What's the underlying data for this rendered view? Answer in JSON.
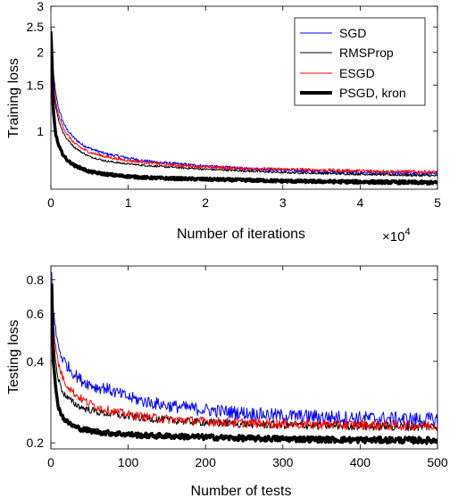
{
  "chart_data": [
    {
      "type": "line",
      "title": "",
      "xlabel": "Number of iterations",
      "ylabel": "Training loss",
      "x_exponent_label": "×10",
      "x_exponent_power": "4",
      "xlim": [
        0,
        5
      ],
      "ylim": [
        0.6,
        3.0
      ],
      "yscale": "log",
      "xticks": [
        0,
        1,
        2,
        3,
        4,
        5
      ],
      "xtick_labels": [
        "0",
        "1",
        "2",
        "3",
        "4",
        "5"
      ],
      "yticks": [
        1,
        1.5,
        2,
        2.5,
        3
      ],
      "ytick_labels": [
        "1",
        "1.5",
        "2",
        "2.5",
        "3"
      ],
      "grid": false,
      "legend_placement": "top-right",
      "series": [
        {
          "name": "SGD",
          "color": "#0000ff",
          "x": [
            0,
            0.03,
            0.06,
            0.1,
            0.15,
            0.2,
            0.3,
            0.4,
            0.5,
            0.7,
            0.9,
            1.2,
            1.5,
            2.0,
            2.5,
            3.0,
            3.5,
            4.0,
            4.5,
            5.0
          ],
          "values": [
            2.3,
            1.7,
            1.4,
            1.22,
            1.1,
            1.02,
            0.94,
            0.89,
            0.86,
            0.82,
            0.8,
            0.77,
            0.755,
            0.735,
            0.72,
            0.71,
            0.7,
            0.695,
            0.69,
            0.685
          ]
        },
        {
          "name": "RMSProp",
          "color": "#000000",
          "x": [
            0,
            0.03,
            0.06,
            0.1,
            0.15,
            0.2,
            0.3,
            0.4,
            0.5,
            0.7,
            0.9,
            1.2,
            1.5,
            2.0,
            2.5,
            3.0,
            3.5,
            4.0,
            4.5,
            5.0
          ],
          "values": [
            2.2,
            1.5,
            1.25,
            1.1,
            1.0,
            0.94,
            0.87,
            0.83,
            0.8,
            0.77,
            0.755,
            0.74,
            0.73,
            0.715,
            0.705,
            0.695,
            0.69,
            0.685,
            0.68,
            0.675
          ]
        },
        {
          "name": "ESGD",
          "color": "#ff0000",
          "x": [
            0,
            0.03,
            0.06,
            0.1,
            0.15,
            0.2,
            0.3,
            0.4,
            0.5,
            0.7,
            0.9,
            1.2,
            1.5,
            2.0,
            2.5,
            3.0,
            3.5,
            4.0,
            4.5,
            5.0
          ],
          "values": [
            2.5,
            1.6,
            1.3,
            1.15,
            1.05,
            0.98,
            0.9,
            0.86,
            0.83,
            0.8,
            0.78,
            0.76,
            0.745,
            0.73,
            0.72,
            0.715,
            0.71,
            0.705,
            0.7,
            0.698
          ]
        },
        {
          "name": "PSGD, kron",
          "color": "#000000",
          "x": [
            0,
            0.03,
            0.06,
            0.1,
            0.15,
            0.2,
            0.3,
            0.4,
            0.5,
            0.7,
            0.9,
            1.2,
            1.5,
            2.0,
            2.5,
            3.0,
            3.5,
            4.0,
            4.5,
            5.0
          ],
          "values": [
            2.4,
            1.2,
            0.98,
            0.88,
            0.82,
            0.78,
            0.74,
            0.72,
            0.7,
            0.685,
            0.675,
            0.665,
            0.66,
            0.655,
            0.65,
            0.645,
            0.642,
            0.64,
            0.638,
            0.635
          ]
        }
      ]
    },
    {
      "type": "line",
      "title": "",
      "xlabel": "Number of tests",
      "ylabel": "Testing loss",
      "xlim": [
        0,
        500
      ],
      "ylim": [
        0.19,
        0.9
      ],
      "yscale": "log",
      "xticks": [
        0,
        100,
        200,
        300,
        400,
        500
      ],
      "xtick_labels": [
        "0",
        "100",
        "200",
        "300",
        "400",
        "500"
      ],
      "yticks": [
        0.2,
        0.4,
        0.6,
        0.8
      ],
      "ytick_labels": [
        "0.2",
        "0.4",
        "0.6",
        "0.8"
      ],
      "grid": false,
      "series": [
        {
          "name": "SGD",
          "color": "#0000ff",
          "x": [
            1,
            3,
            6,
            10,
            15,
            20,
            30,
            40,
            50,
            60,
            70,
            80,
            100,
            120,
            150,
            200,
            250,
            300,
            350,
            400,
            450,
            500
          ],
          "values": [
            0.85,
            0.62,
            0.52,
            0.45,
            0.41,
            0.39,
            0.36,
            0.34,
            0.33,
            0.32,
            0.32,
            0.31,
            0.295,
            0.285,
            0.275,
            0.265,
            0.258,
            0.252,
            0.25,
            0.247,
            0.245,
            0.243
          ]
        },
        {
          "name": "RMSProp",
          "color": "#000000",
          "x": [
            1,
            3,
            6,
            10,
            15,
            20,
            30,
            40,
            50,
            60,
            70,
            80,
            100,
            120,
            150,
            200,
            250,
            300,
            350,
            400,
            450,
            500
          ],
          "values": [
            0.8,
            0.5,
            0.4,
            0.34,
            0.31,
            0.295,
            0.28,
            0.27,
            0.265,
            0.26,
            0.257,
            0.255,
            0.25,
            0.247,
            0.243,
            0.238,
            0.235,
            0.233,
            0.232,
            0.231,
            0.23,
            0.23
          ]
        },
        {
          "name": "ESGD",
          "color": "#ff0000",
          "x": [
            1,
            3,
            6,
            10,
            15,
            20,
            30,
            40,
            50,
            60,
            70,
            80,
            100,
            120,
            150,
            200,
            250,
            300,
            350,
            400,
            450,
            500
          ],
          "values": [
            0.82,
            0.55,
            0.45,
            0.39,
            0.35,
            0.33,
            0.305,
            0.29,
            0.28,
            0.272,
            0.266,
            0.262,
            0.255,
            0.25,
            0.245,
            0.24,
            0.237,
            0.235,
            0.234,
            0.233,
            0.232,
            0.232
          ]
        },
        {
          "name": "PSGD, kron",
          "color": "#000000",
          "x": [
            1,
            3,
            6,
            10,
            15,
            20,
            30,
            40,
            50,
            60,
            70,
            80,
            100,
            120,
            150,
            200,
            250,
            300,
            350,
            400,
            450,
            500
          ],
          "values": [
            0.78,
            0.4,
            0.32,
            0.27,
            0.25,
            0.24,
            0.23,
            0.225,
            0.222,
            0.22,
            0.218,
            0.217,
            0.215,
            0.213,
            0.212,
            0.21,
            0.208,
            0.207,
            0.206,
            0.205,
            0.205,
            0.204
          ]
        }
      ]
    }
  ]
}
